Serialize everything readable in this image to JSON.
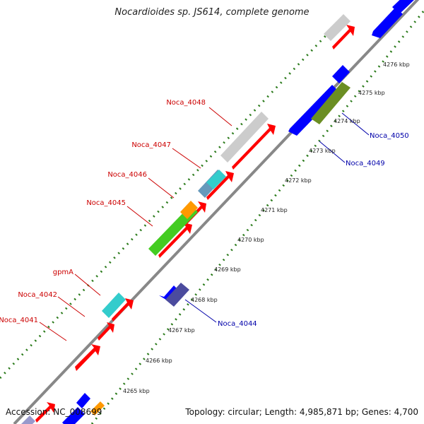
{
  "title": "Nocardioides sp. JS614, complete genome",
  "footer": {
    "accession": "Accession: NC_008699",
    "topology": "Topology: circular",
    "length": "Length: 4,985,871 bp",
    "genes": "Genes: 4,700"
  },
  "colors": {
    "axis": "#888888",
    "ticks": "#2a7a1a",
    "forward_label": "#cc0000",
    "reverse_label": "#0000aa",
    "red_gene": "#ff0000",
    "blue_gene": "#0000ff",
    "grey_gene": "#cccccc",
    "cyan_gene": "#33cccc",
    "green_gene": "#44cc22",
    "olive_gene": "#6b8e23",
    "slate_gene": "#4b4b9e",
    "orange_gene": "#ff9900",
    "steel_gene": "#6699bb"
  },
  "kbp_labels": [
    "4265 kbp",
    "4266 kbp",
    "4267 kbp",
    "4268 kbp",
    "4269 kbp",
    "4270 kbp",
    "4271 kbp",
    "4272 kbp",
    "4273 kbp",
    "4274 kbp",
    "4275 kbp",
    "4276 kbp"
  ],
  "forward_labels": [
    "Noca_4048",
    "Noca_4047",
    "Noca_4046",
    "Noca_4045",
    "gpmA",
    "Noca_4042",
    "Noca_4041"
  ],
  "reverse_labels": [
    "Noca_4050",
    "Noca_4049",
    "Noca_4044"
  ]
}
